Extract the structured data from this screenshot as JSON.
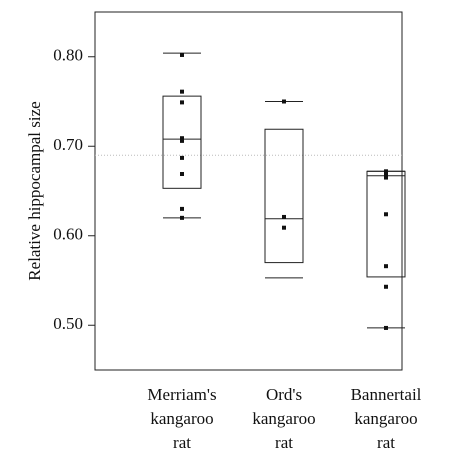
{
  "chart_data": {
    "type": "box",
    "y_label": "Relative hippocampal size",
    "categories": [
      "Merriam's kangaroo rat",
      "Ord's kangaroo rat",
      "Bannertail kangaroo rat"
    ],
    "boxes": [
      {
        "low": 0.62,
        "q1": 0.653,
        "median": 0.708,
        "q3": 0.756,
        "high": 0.804,
        "points": [
          0.802,
          0.761,
          0.749,
          0.709,
          0.706,
          0.687,
          0.669,
          0.63,
          0.62
        ]
      },
      {
        "low": 0.553,
        "q1": 0.57,
        "median": 0.619,
        "q3": 0.719,
        "high": 0.75,
        "points": [
          0.75,
          0.621,
          0.609
        ]
      },
      {
        "low": 0.497,
        "q1": 0.554,
        "median": 0.667,
        "q3": 0.672,
        "high": 0.672,
        "points": [
          0.672,
          0.668,
          0.665,
          0.624,
          0.566,
          0.543,
          0.497
        ]
      }
    ],
    "reference": 0.69,
    "ylim": [
      0.45,
      0.85
    ],
    "yticks": [
      {
        "value": 0.5,
        "label": "0.50"
      },
      {
        "value": 0.6,
        "label": "0.60"
      },
      {
        "value": 0.7,
        "label": "0.70"
      },
      {
        "value": 0.8,
        "label": "0.80"
      }
    ]
  }
}
